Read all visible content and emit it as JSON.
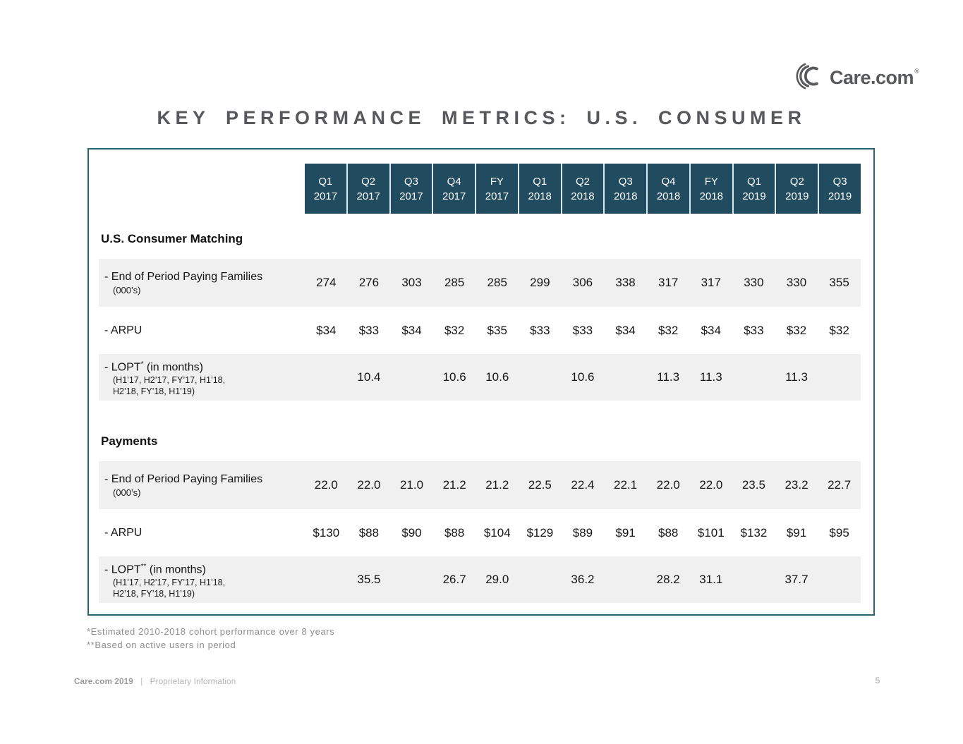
{
  "logo": {
    "text": "Care.com",
    "registered": "®"
  },
  "title": "KEY PERFORMANCE METRICS: U.S. CONSUMER",
  "colors": {
    "header_bg": "#214b5e",
    "table_border": "#2a6272",
    "row_shade": "#f0f0f0",
    "title_text": "#57585b",
    "footnote_text": "#8e8e8e"
  },
  "table": {
    "columns": [
      {
        "period": "Q1",
        "year": "2017"
      },
      {
        "period": "Q2",
        "year": "2017"
      },
      {
        "period": "Q3",
        "year": "2017"
      },
      {
        "period": "Q4",
        "year": "2017"
      },
      {
        "period": "FY",
        "year": "2017"
      },
      {
        "period": "Q1",
        "year": "2018"
      },
      {
        "period": "Q2",
        "year": "2018"
      },
      {
        "period": "Q3",
        "year": "2018"
      },
      {
        "period": "Q4",
        "year": "2018"
      },
      {
        "period": "FY",
        "year": "2018"
      },
      {
        "period": "Q1",
        "year": "2019"
      },
      {
        "period": "Q2",
        "year": "2019"
      },
      {
        "period": "Q3",
        "year": "2019"
      }
    ],
    "sections": [
      {
        "heading": "U.S. Consumer Matching",
        "rows": [
          {
            "label": "- End of Period Paying Families",
            "sup": "",
            "label_suffix": "",
            "sublabels": [
              "(000’s)"
            ],
            "shaded": true,
            "values": [
              "274",
              "276",
              "303",
              "285",
              "285",
              "299",
              "306",
              "338",
              "317",
              "317",
              "330",
              "330",
              "355"
            ]
          },
          {
            "label": "- ARPU",
            "sup": "",
            "label_suffix": "",
            "sublabels": [],
            "shaded": false,
            "values": [
              "$34",
              "$33",
              "$34",
              "$32",
              "$35",
              "$33",
              "$33",
              "$34",
              "$32",
              "$34",
              "$33",
              "$32",
              "$32"
            ]
          },
          {
            "label": "- LOPT",
            "sup": "*",
            "label_suffix": " (in months)",
            "sublabels": [
              "(H1’17, H2’17, FY’17, H1’18,",
              "H2’18, FY’18, H1’19)"
            ],
            "shaded": true,
            "values": [
              "",
              "10.4",
              "",
              "10.6",
              "10.6",
              "",
              "10.6",
              "",
              "11.3",
              "11.3",
              "",
              "11.3",
              ""
            ]
          }
        ]
      },
      {
        "heading": "Payments",
        "rows": [
          {
            "label": "- End of Period Paying Families",
            "sup": "",
            "label_suffix": "",
            "sublabels": [
              "(000’s)"
            ],
            "shaded": true,
            "values": [
              "22.0",
              "22.0",
              "21.0",
              "21.2",
              "21.2",
              "22.5",
              "22.4",
              "22.1",
              "22.0",
              "22.0",
              "23.5",
              "23.2",
              "22.7"
            ]
          },
          {
            "label": "- ARPU",
            "sup": "",
            "label_suffix": "",
            "sublabels": [],
            "shaded": false,
            "values": [
              "$130",
              "$88",
              "$90",
              "$88",
              "$104",
              "$129",
              "$89",
              "$91",
              "$88",
              "$101",
              "$132",
              "$91",
              "$95"
            ]
          },
          {
            "label": "- LOPT",
            "sup": "**",
            "label_suffix": " (in months)",
            "sublabels": [
              "(H1’17, H2’17, FY’17, H1’18,",
              "H2’18, FY’18, H1’19)"
            ],
            "shaded": true,
            "values": [
              "",
              "35.5",
              "",
              "26.7",
              "29.0",
              "",
              "36.2",
              "",
              "28.2",
              "31.1",
              "",
              "37.7",
              ""
            ]
          }
        ]
      }
    ]
  },
  "footnotes": [
    "*Estimated 2010-2018 cohort performance over 8 years",
    "**Based on active users in period"
  ],
  "footer": {
    "brand": "Care.com 2019",
    "separator": "|",
    "info": "Proprietary Information"
  },
  "page": {
    "number": "5"
  }
}
